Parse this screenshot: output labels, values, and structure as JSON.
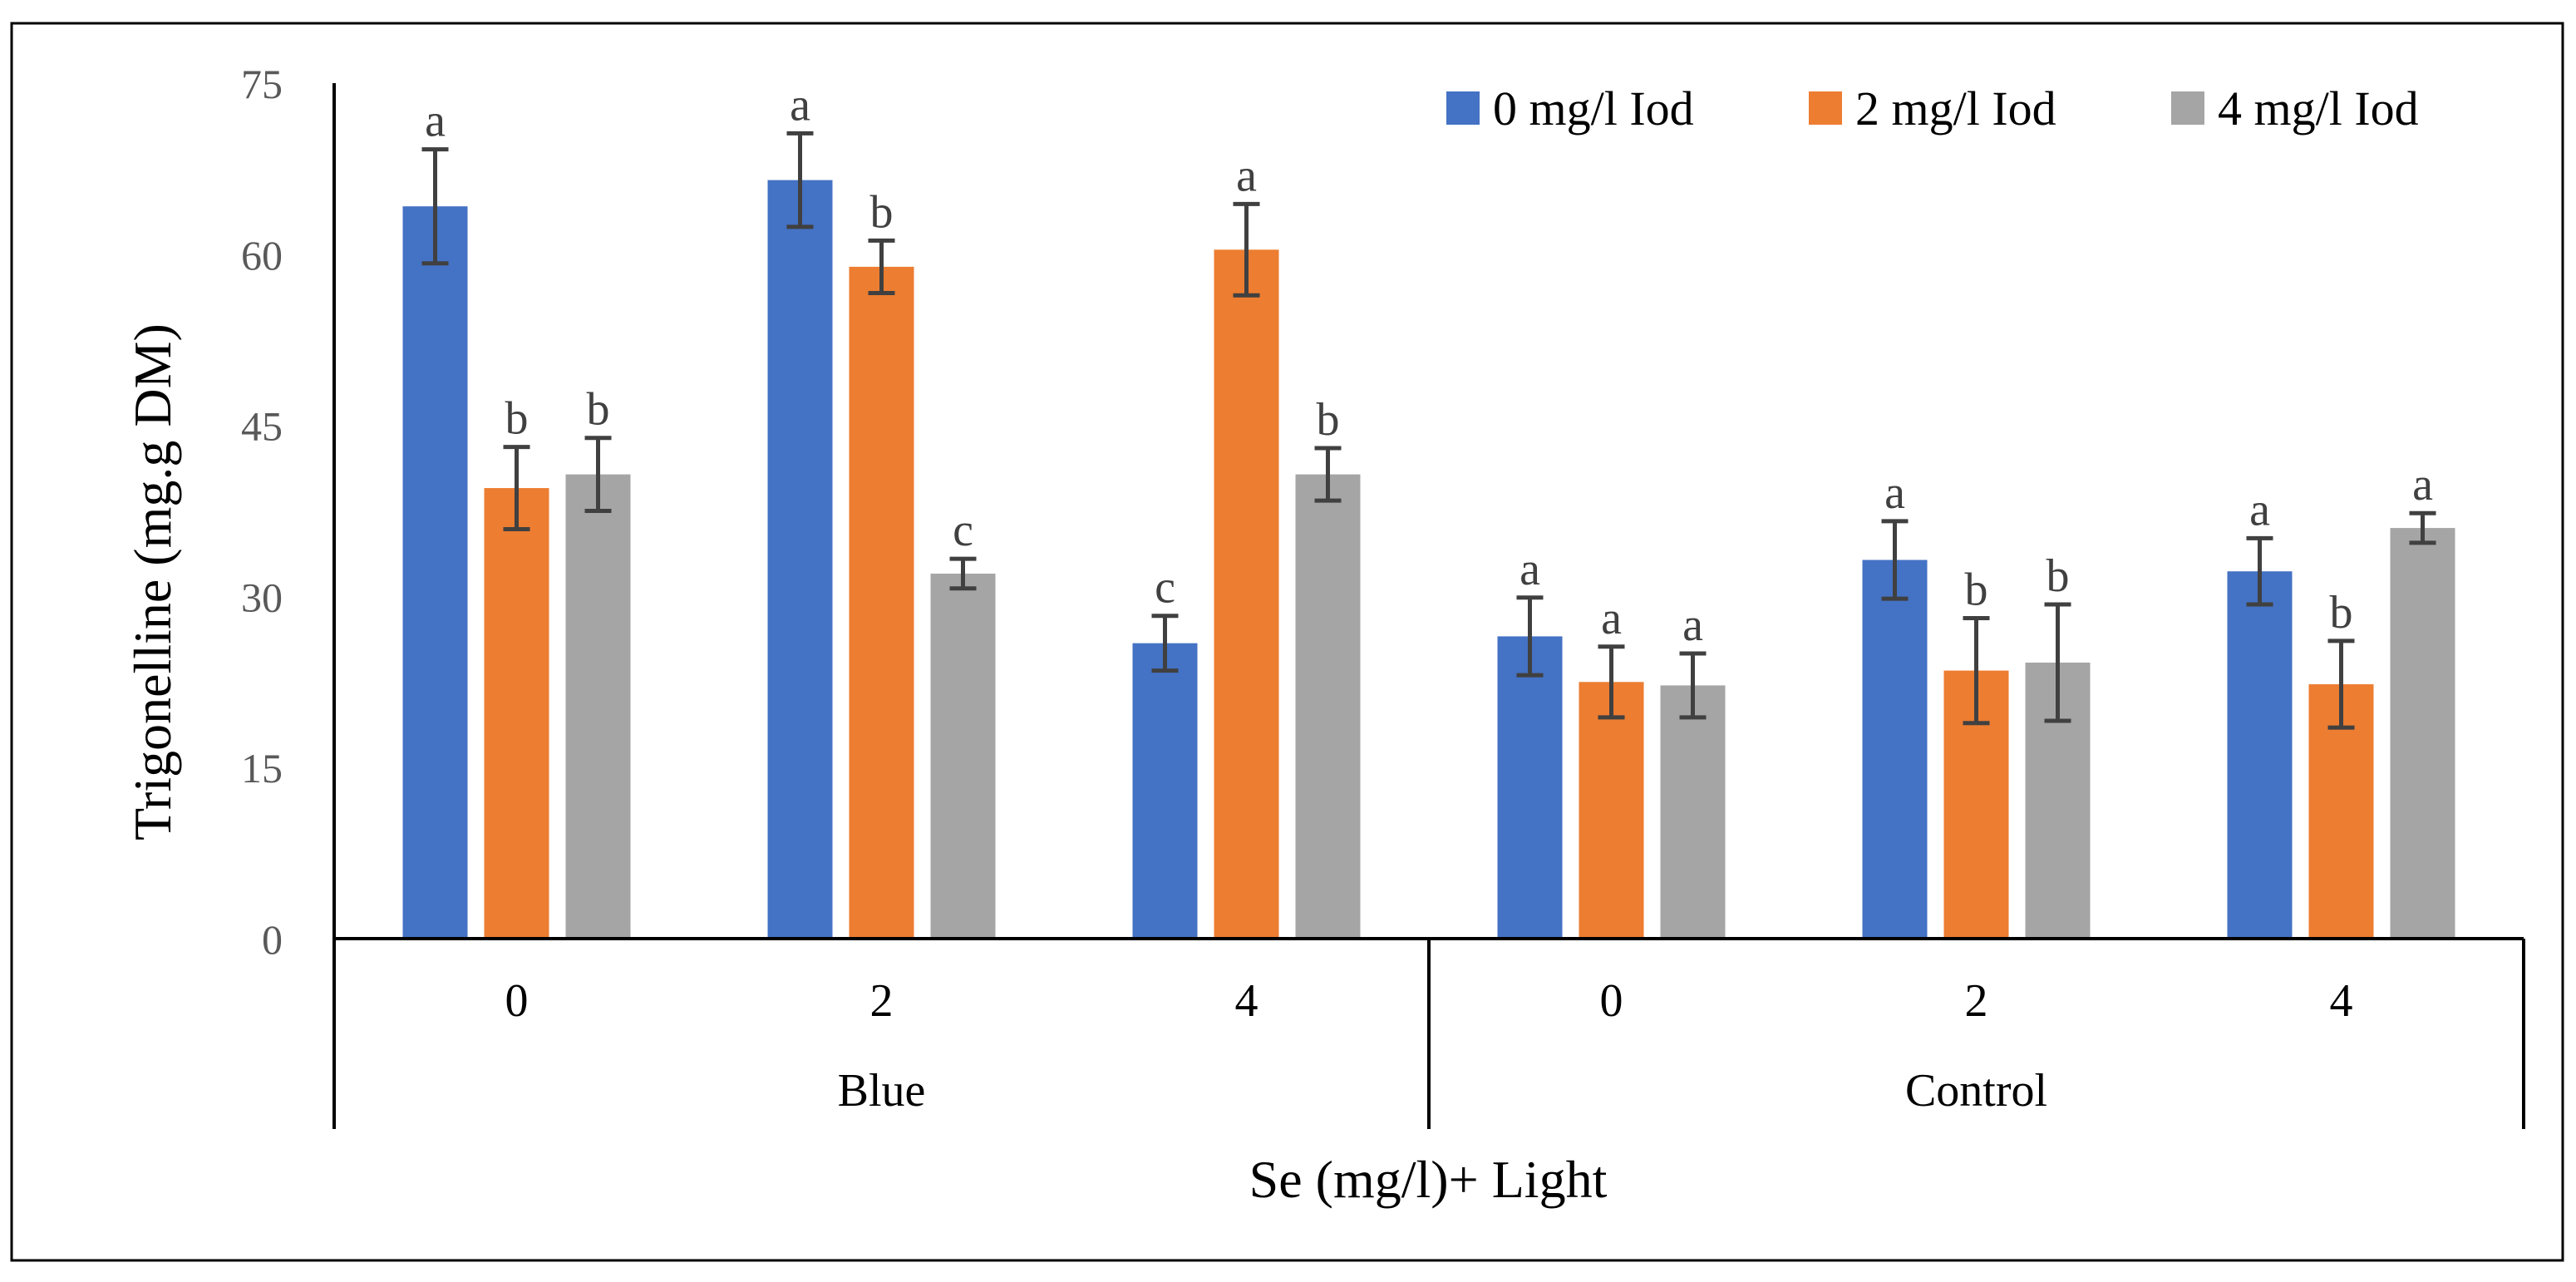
{
  "chart_data": {
    "type": "bar",
    "title": "",
    "xlabel": "Se (mg/l)+ Light",
    "ylabel": "Trigonelline  (mg.g DM)",
    "ylim": [
      0,
      75
    ],
    "yticks": [
      "0",
      "15",
      "30",
      "45",
      "60",
      "75"
    ],
    "groups": [
      {
        "name": "Blue",
        "categories": [
          "0",
          "2",
          "4"
        ]
      },
      {
        "name": "Control",
        "categories": [
          "0",
          "2",
          "4"
        ]
      }
    ],
    "categories": [
      "0",
      "2",
      "4",
      "0",
      "2",
      "4"
    ],
    "legend_position": "top-right",
    "series": [
      {
        "name": "0 mg/l Iod",
        "color": "#4472C4",
        "values": [
          64.2,
          66.5,
          25.9,
          26.5,
          33.2,
          32.2
        ],
        "errors": [
          5.0,
          4.1,
          2.4,
          3.4,
          3.4,
          2.9
        ],
        "letters": [
          "a",
          "a",
          "c",
          "a",
          "a",
          "a"
        ]
      },
      {
        "name": "2 mg/l Iod",
        "color": "#ED7D31",
        "values": [
          39.5,
          58.9,
          60.4,
          22.5,
          23.5,
          22.3
        ],
        "errors": [
          3.6,
          2.3,
          4.0,
          3.1,
          4.6,
          3.8
        ],
        "letters": [
          "b",
          "b",
          "a",
          "a",
          "b",
          "b"
        ]
      },
      {
        "name": "4 mg/l Iod",
        "color": "#A5A5A5",
        "values": [
          40.7,
          32.0,
          40.7,
          22.2,
          24.2,
          36.0
        ],
        "errors": [
          3.2,
          1.3,
          2.3,
          2.8,
          5.1,
          1.3
        ],
        "letters": [
          "b",
          "c",
          "b",
          "a",
          "b",
          "a"
        ]
      }
    ]
  }
}
